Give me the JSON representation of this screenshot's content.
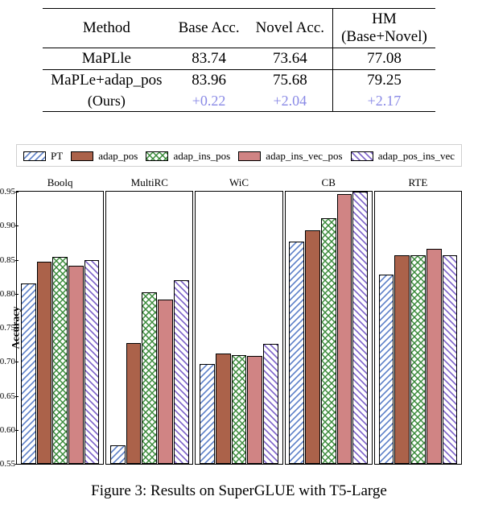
{
  "table": {
    "headers": {
      "method": "Method",
      "base": "Base Acc.",
      "novel": "Novel Acc.",
      "hm_top": "HM",
      "hm_bottom": "(Base+Novel)"
    },
    "rows": {
      "maple": {
        "name": "MaPLle",
        "base": "83.74",
        "novel": "73.64",
        "hm": "77.08"
      },
      "ours": {
        "name": "MaPLe+adap_pos",
        "base": "83.96",
        "novel": "75.68",
        "hm": "79.25"
      },
      "ours_label": "(Ours)",
      "delta": {
        "base": "+0.22",
        "novel": "+2.04",
        "hm": "+2.17"
      }
    }
  },
  "legend": {
    "pt": "PT",
    "adap_pos": "adap_pos",
    "adap_ins_pos": "adap_ins_pos",
    "adap_ins_vec_pos": "adap_ins_vec_pos",
    "adap_pos_ins_vec": "adap_pos_ins_vec"
  },
  "chart": {
    "ylabel": "Accuracy",
    "ymin": 0.55,
    "ymax": 0.95,
    "ytick_step": 0.05,
    "tick_decimals": 2,
    "series_order": [
      "pt",
      "adap_pos",
      "adap_ins_pos",
      "adap_ins_vec_pos",
      "adap_pos_ins_vec"
    ],
    "series_hatch": {
      "pt": "hatch-pt",
      "adap_pos": "hatch-adap-pos",
      "adap_ins_pos": "hatch-adap-ins-pos",
      "adap_ins_vec_pos": "hatch-adap-ins-vec-pos",
      "adap_pos_ins_vec": "hatch-adap-pos-ins-vec"
    },
    "series_colors": {
      "pt": "#5b7fc7",
      "adap_pos": "#9e4a2e",
      "adap_ins_pos": "#3a8a3a",
      "adap_ins_vec_pos": "#b33a3a",
      "adap_pos_ins_vec": "#7a5fc7"
    },
    "panels": [
      {
        "title": "Boolq",
        "values": {
          "pt": 0.815,
          "adap_pos": 0.847,
          "adap_ins_pos": 0.854,
          "adap_ins_vec_pos": 0.841,
          "adap_pos_ins_vec": 0.85
        }
      },
      {
        "title": "MultiRC",
        "values": {
          "pt": 0.577,
          "adap_pos": 0.727,
          "adap_ins_pos": 0.802,
          "adap_ins_vec_pos": 0.792,
          "adap_pos_ins_vec": 0.82
        }
      },
      {
        "title": "WiC",
        "values": {
          "pt": 0.697,
          "adap_pos": 0.712,
          "adap_ins_pos": 0.71,
          "adap_ins_vec_pos": 0.709,
          "adap_pos_ins_vec": 0.726
        }
      },
      {
        "title": "CB",
        "values": {
          "pt": 0.877,
          "adap_pos": 0.893,
          "adap_ins_pos": 0.911,
          "adap_ins_vec_pos": 0.946,
          "adap_pos_ins_vec": 0.95
        }
      },
      {
        "title": "RTE",
        "values": {
          "pt": 0.828,
          "adap_pos": 0.857,
          "adap_ins_pos": 0.857,
          "adap_ins_vec_pos": 0.866,
          "adap_pos_ins_vec": 0.857
        }
      }
    ]
  },
  "caption": "Figure 3: Results on SuperGLUE with T5-Large"
}
